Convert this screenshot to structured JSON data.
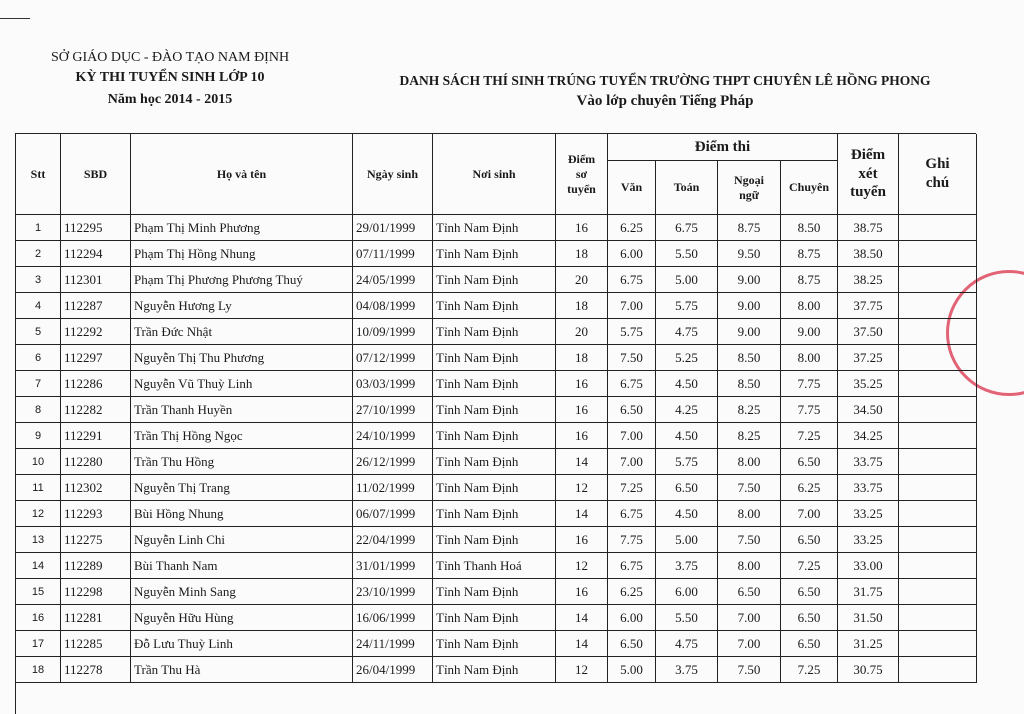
{
  "header": {
    "left": [
      "SỞ GIÁO DỤC - ĐÀO TẠO NAM ĐỊNH",
      "KỲ THI TUYỂN SINH LỚP 10",
      "Năm học 2014 - 2015"
    ],
    "title": "DANH SÁCH THÍ SINH TRÚNG TUYỂN TRƯỜNG THPT CHUYÊN LÊ HỒNG PHONG",
    "subtitle": "Vào lớp chuyên Tiếng Pháp"
  },
  "table": {
    "headers": [
      "Stt",
      "SBD",
      "Họ và tên",
      "Ngày sinh",
      "Nơi sinh",
      "Điểm sơ tuyển",
      "Điểm xét tuyển",
      "Ghi chú"
    ],
    "exam_header": "Điểm thi",
    "exam_subheaders": [
      "Văn",
      "Toán",
      "Ngoại ngữ",
      "Chuyên"
    ],
    "rows": [
      [
        "1",
        "112295",
        "Phạm Thị Minh Phương",
        "29/01/1999",
        "Tỉnh Nam Định",
        "16",
        "6.25",
        "6.75",
        "8.75",
        "8.50",
        "38.75"
      ],
      [
        "2",
        "112294",
        "Phạm Thị Hồng Nhung",
        "07/11/1999",
        "Tỉnh Nam Định",
        "18",
        "6.00",
        "5.50",
        "9.50",
        "8.75",
        "38.50"
      ],
      [
        "3",
        "112301",
        "Phạm Thị Phương Phương Thuý",
        "24/05/1999",
        "Tỉnh Nam Định",
        "20",
        "6.75",
        "5.00",
        "9.00",
        "8.75",
        "38.25"
      ],
      [
        "4",
        "112287",
        "Nguyễn Hương Ly",
        "04/08/1999",
        "Tỉnh Nam Định",
        "18",
        "7.00",
        "5.75",
        "9.00",
        "8.00",
        "37.75"
      ],
      [
        "5",
        "112292",
        "Trần Đức Nhật",
        "10/09/1999",
        "Tỉnh Nam Định",
        "20",
        "5.75",
        "4.75",
        "9.00",
        "9.00",
        "37.50"
      ],
      [
        "6",
        "112297",
        "Nguyễn Thị Thu Phương",
        "07/12/1999",
        "Tỉnh Nam Định",
        "18",
        "7.50",
        "5.25",
        "8.50",
        "8.00",
        "37.25"
      ],
      [
        "7",
        "112286",
        "Nguyễn Vũ Thuỳ Linh",
        "03/03/1999",
        "Tỉnh Nam Định",
        "16",
        "6.75",
        "4.50",
        "8.50",
        "7.75",
        "35.25"
      ],
      [
        "8",
        "112282",
        "Trần Thanh Huyền",
        "27/10/1999",
        "Tỉnh Nam Định",
        "16",
        "6.50",
        "4.25",
        "8.25",
        "7.75",
        "34.50"
      ],
      [
        "9",
        "112291",
        "Trần Thị Hồng Ngọc",
        "24/10/1999",
        "Tỉnh Nam Định",
        "16",
        "7.00",
        "4.50",
        "8.25",
        "7.25",
        "34.25"
      ],
      [
        "10",
        "112280",
        "Trần Thu Hồng",
        "26/12/1999",
        "Tỉnh Nam Định",
        "14",
        "7.00",
        "5.75",
        "8.00",
        "6.50",
        "33.75"
      ],
      [
        "11",
        "112302",
        "Nguyễn Thị Trang",
        "11/02/1999",
        "Tỉnh Nam Định",
        "12",
        "7.25",
        "6.50",
        "7.50",
        "6.25",
        "33.75"
      ],
      [
        "12",
        "112293",
        "Bùi Hồng Nhung",
        "06/07/1999",
        "Tỉnh Nam Định",
        "14",
        "6.75",
        "4.50",
        "8.00",
        "7.00",
        "33.25"
      ],
      [
        "13",
        "112275",
        "Nguyễn Linh Chi",
        "22/04/1999",
        "Tỉnh Nam Định",
        "16",
        "7.75",
        "5.00",
        "7.50",
        "6.50",
        "33.25"
      ],
      [
        "14",
        "112289",
        "Bùi Thanh Nam",
        "31/01/1999",
        "Tỉnh Thanh Hoá",
        "12",
        "6.75",
        "3.75",
        "8.00",
        "7.25",
        "33.00"
      ],
      [
        "15",
        "112298",
        "Nguyễn Minh Sang",
        "23/10/1999",
        "Tỉnh Nam Định",
        "16",
        "6.25",
        "6.00",
        "6.50",
        "6.50",
        "31.75"
      ],
      [
        "16",
        "112281",
        "Nguyễn Hữu Hùng",
        "16/06/1999",
        "Tỉnh Nam Định",
        "14",
        "6.00",
        "5.50",
        "7.00",
        "6.50",
        "31.50"
      ],
      [
        "17",
        "112285",
        "Đỗ Lưu Thuỳ Linh",
        "24/11/1999",
        "Tỉnh Nam Định",
        "14",
        "6.50",
        "4.75",
        "7.00",
        "6.50",
        "31.25"
      ],
      [
        "18",
        "112278",
        "Trần Thu Hà",
        "26/04/1999",
        "Tỉnh Nam Định",
        "12",
        "5.00",
        "3.75",
        "7.50",
        "7.25",
        "30.75"
      ]
    ]
  }
}
